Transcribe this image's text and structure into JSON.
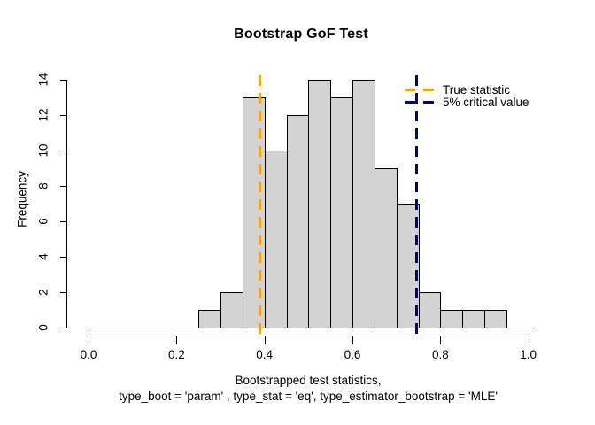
{
  "title": "Bootstrap GoF Test",
  "y_axis": {
    "label": "Frequency",
    "ticks": [
      0,
      2,
      4,
      6,
      8,
      10,
      12,
      14
    ]
  },
  "x_axis": {
    "ticks": [
      {
        "v": 0.0,
        "label": "0.0"
      },
      {
        "v": 0.2,
        "label": "0.2"
      },
      {
        "v": 0.4,
        "label": "0.4"
      },
      {
        "v": 0.6,
        "label": "0.6"
      },
      {
        "v": 0.8,
        "label": "0.8"
      },
      {
        "v": 1.0,
        "label": "1.0"
      }
    ],
    "caption_line1": "Bootstrapped test statistics,",
    "caption_line2": "type_boot = 'param' , type_stat = 'eq', type_estimator_bootstrap = 'MLE'"
  },
  "legend": {
    "items": [
      {
        "label": "True statistic",
        "color": "#FFA500"
      },
      {
        "label": "5% critical value",
        "color": "#000080"
      }
    ]
  },
  "chart_data": {
    "type": "bar",
    "subtype": "histogram",
    "title": "Bootstrap GoF Test",
    "xlabel": "Bootstrapped test statistics, type_boot = 'param' , type_stat = 'eq', type_estimator_bootstrap = 'MLE'",
    "ylabel": "Frequency",
    "xlim": [
      0.0,
      1.0
    ],
    "ylim": [
      0,
      14
    ],
    "x_ticks": [
      0.0,
      0.2,
      0.4,
      0.6,
      0.8,
      1.0
    ],
    "y_ticks": [
      0,
      2,
      4,
      6,
      8,
      10,
      12,
      14
    ],
    "grid": false,
    "legend_position": "top-right",
    "bin_start": 0.25,
    "bin_width": 0.05,
    "bin_edges": [
      0.25,
      0.3,
      0.35,
      0.4,
      0.45,
      0.5,
      0.55,
      0.6,
      0.65,
      0.7,
      0.75,
      0.8,
      0.85,
      0.9,
      0.95
    ],
    "counts": [
      1,
      2,
      13,
      10,
      12,
      14,
      13,
      14,
      9,
      7,
      2,
      1,
      1,
      1
    ],
    "total_samples": 100,
    "bar_fill": "#D3D3D3",
    "bar_border": "#000000",
    "vlines": [
      {
        "name": "true-statistic",
        "x": 0.39,
        "color": "#FFA500",
        "style": "dashed",
        "label": "True statistic"
      },
      {
        "name": "critical-value",
        "x": 0.745,
        "color": "#000080",
        "style": "dashed",
        "label": "5% critical value"
      }
    ]
  }
}
